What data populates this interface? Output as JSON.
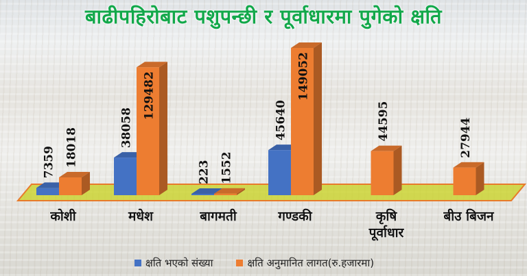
{
  "chart_data": {
    "type": "bar",
    "title": "बाढीपहिरोबाट पशुपन्छी र पूर्वाधारमा पुगेको क्षति",
    "categories": [
      "कोशी",
      "मधेश",
      "बागमती",
      "गण्डकी",
      "कृषि पूर्वाधार",
      "बीउ बिजन"
    ],
    "series": [
      {
        "name": "क्षति भएको संख्या",
        "color": "#4472c4",
        "values": [
          7359,
          38058,
          223,
          45640,
          null,
          null
        ]
      },
      {
        "name": "क्षति अनुमानित लागत(रु.हजारमा)",
        "color": "#ed7d31",
        "values": [
          18018,
          129482,
          1552,
          149052,
          44595,
          27944
        ]
      }
    ],
    "legend_position": "bottom",
    "grid": false,
    "style": "3d-column",
    "floor_color": "#c8d21e"
  }
}
